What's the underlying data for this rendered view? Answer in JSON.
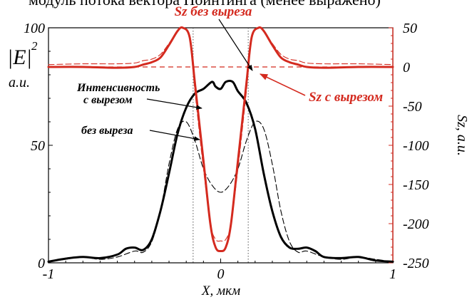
{
  "caption_fragment": "модуль потока вектора Пойнтинга (менее выражено)",
  "chart_data": {
    "type": "line",
    "x_axis": {
      "label": "X, мкм",
      "range": [
        -1,
        1
      ],
      "ticks": [
        "-1",
        "0",
        "1"
      ],
      "tick_values": [
        -1,
        0,
        1
      ]
    },
    "left_axis": {
      "label_main": "|E|",
      "label_sup": "2",
      "label_unit": "a.u.",
      "range": [
        0,
        100
      ],
      "ticks": [
        "0",
        "50",
        "100"
      ],
      "tick_values": [
        0,
        50,
        100
      ]
    },
    "right_axis": {
      "label": "Sz, a.u.",
      "color": "#d42a1f",
      "range": [
        -250,
        50
      ],
      "ticks": [
        "50",
        "0",
        "-50",
        "-100",
        "-150",
        "-200",
        "-250"
      ],
      "tick_values": [
        50,
        0,
        -50,
        -100,
        -150,
        -200,
        -250
      ]
    },
    "vertical_markers": [
      -0.16,
      0.16
    ],
    "zero_line_right": 0,
    "colors": {
      "intensity": "#000000",
      "sz": "#d42a1f"
    },
    "series": [
      {
        "axis": "left",
        "style": "solid",
        "color": "#000000",
        "x": [
          -1.0,
          -0.9,
          -0.8,
          -0.7,
          -0.6,
          -0.55,
          -0.5,
          -0.45,
          -0.4,
          -0.35,
          -0.3,
          -0.25,
          -0.2,
          -0.15,
          -0.1,
          -0.05,
          -0.03,
          0.0,
          0.03,
          0.07,
          0.1,
          0.15,
          0.2,
          0.25,
          0.3,
          0.35,
          0.4,
          0.45,
          0.5,
          0.55,
          0.6,
          0.7,
          0.8,
          0.9,
          1.0
        ],
        "y": [
          0.5,
          1.8,
          2.5,
          2.0,
          3.5,
          6.0,
          6.5,
          5.5,
          10,
          22,
          38,
          55,
          66,
          72,
          74,
          77,
          75,
          74,
          77,
          77,
          73,
          68,
          57,
          38,
          22,
          11,
          6.5,
          6,
          6.5,
          5,
          2.5,
          2,
          2.5,
          1,
          0.5
        ]
      },
      {
        "axis": "left",
        "style": "dashed",
        "color": "#000000",
        "x": [
          -1.0,
          -0.9,
          -0.8,
          -0.7,
          -0.6,
          -0.5,
          -0.45,
          -0.4,
          -0.35,
          -0.3,
          -0.25,
          -0.2,
          -0.15,
          -0.1,
          -0.05,
          0.0,
          0.05,
          0.1,
          0.15,
          0.2,
          0.25,
          0.3,
          0.35,
          0.4,
          0.45,
          0.5,
          0.6,
          0.7,
          0.8,
          0.9,
          1.0
        ],
        "y": [
          0.5,
          1.5,
          2.5,
          1.5,
          2.5,
          5,
          4.5,
          9,
          22,
          42,
          57,
          60,
          52,
          40,
          33,
          30,
          33,
          40,
          52,
          60,
          57,
          42,
          22,
          9,
          4.5,
          5,
          2.5,
          1.5,
          2.5,
          1.5,
          0.5
        ]
      },
      {
        "axis": "right",
        "style": "solid",
        "color": "#d42a1f",
        "x": [
          -1.0,
          -0.8,
          -0.6,
          -0.5,
          -0.45,
          -0.4,
          -0.35,
          -0.3,
          -0.25,
          -0.22,
          -0.18,
          -0.15,
          -0.1,
          -0.06,
          -0.03,
          0.0,
          0.03,
          0.06,
          0.1,
          0.15,
          0.18,
          0.22,
          0.25,
          0.3,
          0.35,
          0.4,
          0.45,
          0.5,
          0.6,
          0.8,
          1.0
        ],
        "y": [
          0,
          0,
          -1,
          0,
          3,
          6,
          12,
          28,
          46,
          50,
          38,
          -20,
          -120,
          -200,
          -230,
          -235,
          -230,
          -200,
          -120,
          -20,
          38,
          50,
          46,
          28,
          12,
          6,
          3,
          0,
          -1,
          0,
          0
        ]
      },
      {
        "axis": "right",
        "style": "dashed",
        "color": "#d42a1f",
        "x": [
          -1.0,
          -0.8,
          -0.6,
          -0.5,
          -0.45,
          -0.4,
          -0.35,
          -0.3,
          -0.25,
          -0.22,
          -0.18,
          -0.15,
          -0.1,
          -0.06,
          -0.03,
          0.0,
          0.03,
          0.06,
          0.1,
          0.15,
          0.18,
          0.22,
          0.25,
          0.3,
          0.35,
          0.4,
          0.45,
          0.5,
          0.6,
          0.8,
          1.0
        ],
        "y": [
          3,
          4,
          4,
          5,
          8,
          10,
          16,
          30,
          46,
          50,
          35,
          -30,
          -130,
          -200,
          -220,
          -222,
          -220,
          -200,
          -130,
          -30,
          35,
          50,
          46,
          30,
          16,
          10,
          8,
          5,
          4,
          4,
          3
        ]
      }
    ],
    "annotations": [
      {
        "text": "Sz без выреза",
        "color": "#d42a1f"
      },
      {
        "text": "Sz с вырезом",
        "color": "#d42a1f"
      },
      {
        "text": "Интенсивность",
        "color": "#000000"
      },
      {
        "text": "с вырезом",
        "color": "#000000"
      },
      {
        "text": "без выреза",
        "color": "#000000"
      }
    ]
  }
}
